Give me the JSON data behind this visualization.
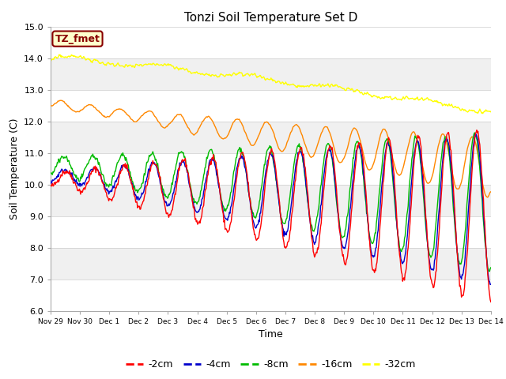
{
  "title": "Tonzi Soil Temperature Set D",
  "xlabel": "Time",
  "ylabel": "Soil Temperature (C)",
  "ylim": [
    6.0,
    15.0
  ],
  "yticks": [
    6.0,
    7.0,
    8.0,
    9.0,
    10.0,
    11.0,
    12.0,
    13.0,
    14.0,
    15.0
  ],
  "colors": {
    "-2cm": "#ff0000",
    "-4cm": "#0000cc",
    "-8cm": "#00bb00",
    "-16cm": "#ff8800",
    "-32cm": "#ffff00"
  },
  "legend_labels": [
    "-2cm",
    "-4cm",
    "-8cm",
    "-16cm",
    "-32cm"
  ],
  "tz_fmet_label": "TZ_fmet",
  "tz_fmet_bg": "#ffffcc",
  "tz_fmet_border": "#880000",
  "background_color": "#ffffff",
  "plot_bg_light": "#f0f0f0",
  "plot_bg_dark": "#d8d8d8",
  "xtick_labels": [
    "Nov 29",
    "Nov 30",
    "Dec 1",
    "Dec 2",
    "Dec 3",
    "Dec 4",
    "Dec 5",
    "Dec 6",
    "Dec 7",
    "Dec 8",
    "Dec 9",
    "Dec 10",
    "Dec 11",
    "Dec 12",
    "Dec 13",
    "Dec 14"
  ],
  "n_points": 720
}
